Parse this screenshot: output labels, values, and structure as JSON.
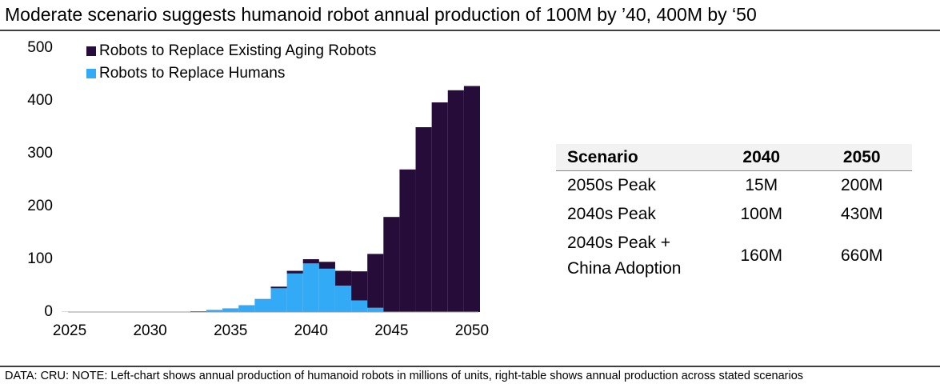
{
  "title": "Moderate scenario suggests humanoid robot annual production of 100M by ’40, 400M by ‘50",
  "note": "DATA: CRU: NOTE: Left-chart shows annual production of humanoid robots in millions of units, right-table shows annual production across stated scenarios",
  "chart_data": {
    "type": "bar",
    "stacked": true,
    "x": [
      2025,
      2026,
      2027,
      2028,
      2029,
      2030,
      2031,
      2032,
      2033,
      2034,
      2035,
      2036,
      2037,
      2038,
      2039,
      2040,
      2041,
      2042,
      2043,
      2044,
      2045,
      2046,
      2047,
      2048,
      2049,
      2050
    ],
    "series": [
      {
        "name": "Robots to Replace Humans",
        "color": "#33aaf5",
        "values": [
          0.5,
          0.5,
          0.5,
          0.5,
          0.5,
          0.5,
          0.5,
          0.5,
          1,
          3,
          6,
          12,
          24,
          45,
          73,
          92,
          82,
          50,
          22,
          8,
          0,
          0,
          0,
          0,
          0,
          0
        ]
      },
      {
        "name": "Robots to Replace Existing Aging Robots",
        "color": "#260c38",
        "values": [
          0,
          0,
          0,
          0,
          0,
          0,
          0,
          0,
          0.5,
          0.5,
          0.5,
          0.5,
          0.5,
          3,
          5,
          8,
          13,
          28,
          55,
          102,
          180,
          270,
          350,
          397,
          420,
          428
        ]
      }
    ],
    "xlim": [
      2024.5,
      2050.5
    ],
    "xticks": [
      2025,
      2030,
      2035,
      2040,
      2045,
      2050
    ],
    "ylim": [
      0,
      500
    ],
    "yticks": [
      0,
      100,
      200,
      300,
      400,
      500
    ]
  },
  "table": {
    "header": [
      "Scenario",
      "2040",
      "2050"
    ],
    "rows": [
      [
        "2050s Peak",
        "15M",
        "200M"
      ],
      [
        "2040s Peak",
        "100M",
        "430M"
      ],
      [
        "2040s Peak + China Adoption",
        "160M",
        "660M"
      ]
    ]
  }
}
